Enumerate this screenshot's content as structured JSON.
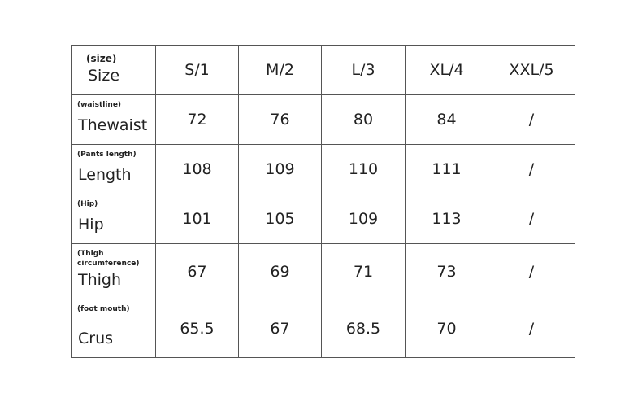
{
  "header": {
    "sub": "(size)",
    "label": "Size",
    "sizes": [
      "S/1",
      "M/2",
      "L/3",
      "XL/4",
      "XXL/5"
    ]
  },
  "rows": [
    {
      "sub": "(waistline)",
      "label": "Thewaist",
      "values": [
        "72",
        "76",
        "80",
        "84",
        "/"
      ]
    },
    {
      "sub": "(Pants length)",
      "label": "Length",
      "values": [
        "108",
        "109",
        "110",
        "111",
        "/"
      ]
    },
    {
      "sub": "(Hip)",
      "label": "Hip",
      "values": [
        "101",
        "105",
        "109",
        "113",
        "/"
      ]
    },
    {
      "sub": "(Thigh circumference)",
      "label": "Thigh",
      "values": [
        "67",
        "69",
        "71",
        "73",
        "/"
      ]
    },
    {
      "sub": "(foot mouth)",
      "label": "Crus",
      "values": [
        "65.5",
        "67",
        "68.5",
        "70",
        "/"
      ]
    }
  ]
}
